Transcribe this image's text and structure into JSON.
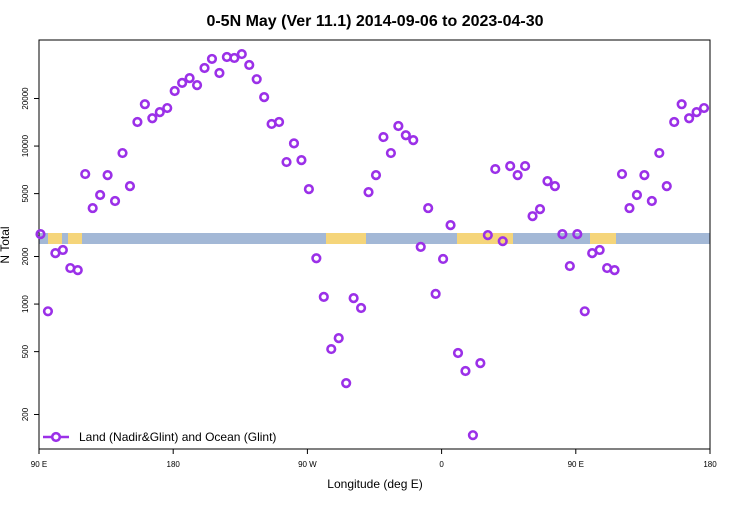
{
  "chart_data": {
    "type": "scatter",
    "title": "0-5N May (Ver 11.1)   2014-09-06 to 2023-04-30",
    "xlabel": "Longitude (deg E)",
    "ylabel": "N Total",
    "log_y": true,
    "legend": "lower left",
    "xlim": [
      90,
      540
    ],
    "xticks": [
      {
        "value": 90,
        "label": "90 E"
      },
      180,
      {
        "value": 270,
        "label": "90 W"
      },
      {
        "value": 360,
        "label": "0"
      },
      {
        "value": 450,
        "label": "90 E"
      },
      {
        "value": 540,
        "label": "180"
      }
    ],
    "ylim": [
      121,
      46900
    ],
    "yticks": [
      200,
      500,
      1000,
      2000,
      5000,
      10000,
      20000
    ],
    "series": [
      {
        "name": "Land (Nadir&Glint) and Ocean (Glint)",
        "color": "#9b30e8",
        "x": [
          91,
          96,
          101,
          106,
          111,
          116,
          121,
          126,
          131,
          136,
          141,
          146,
          151,
          156,
          161,
          166,
          171,
          176,
          181,
          186,
          191,
          196,
          201,
          206,
          211,
          216,
          221,
          226,
          231,
          236,
          241,
          246,
          251,
          256,
          261,
          266,
          271,
          276,
          281,
          286,
          291,
          296,
          301,
          306,
          311,
          316,
          321,
          326,
          331,
          336,
          341,
          346,
          351,
          356,
          361,
          366,
          371,
          376,
          381,
          386,
          391,
          396,
          401,
          406,
          411,
          416,
          421,
          426,
          431,
          436,
          441,
          446,
          451,
          456,
          461,
          466,
          471,
          476,
          481,
          486,
          491,
          496,
          501,
          506,
          511,
          516,
          521,
          526,
          531,
          536
        ],
        "values": [
          2770,
          900,
          2100,
          2200,
          1690,
          1640,
          6650,
          4050,
          4900,
          6550,
          4490,
          9030,
          5580,
          14200,
          18400,
          15000,
          16400,
          17400,
          22300,
          25100,
          26900,
          24300,
          31200,
          35600,
          29000,
          36600,
          36100,
          38200,
          32600,
          26500,
          20400,
          13800,
          14200,
          7920,
          10400,
          8150,
          5340,
          1950,
          1110,
          519,
          609,
          316,
          1090,
          944,
          5110,
          6550,
          11400,
          9030,
          13400,
          11700,
          10900,
          2300,
          4050,
          1160,
          1930,
          3160,
          490,
          377,
          148,
          423,
          2730,
          7150,
          2500,
          7470,
          6550,
          7470,
          3600,
          3990,
          6000,
          5580,
          2770,
          1740,
          2770,
          900,
          2100,
          2200,
          1690,
          1640,
          6650,
          4050,
          4900,
          6550,
          4490,
          9030,
          5580,
          14200,
          18400,
          15000,
          16400,
          17400
        ]
      }
    ]
  }
}
